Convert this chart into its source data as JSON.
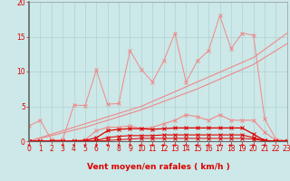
{
  "bg_color": "#cce8e8",
  "grid_color": "#aacccc",
  "line_color_light": "#f08888",
  "line_color_dark": "#dd0000",
  "xlabel": "Vent moyen/en rafales ( km/h )",
  "ylim": [
    0,
    20
  ],
  "xlim": [
    0,
    23
  ],
  "yticks": [
    0,
    5,
    10,
    15,
    20
  ],
  "xticks": [
    0,
    1,
    2,
    3,
    4,
    5,
    6,
    7,
    8,
    9,
    10,
    11,
    12,
    13,
    14,
    15,
    16,
    17,
    18,
    19,
    20,
    21,
    22,
    23
  ],
  "series_spiky": [
    [
      0,
      2.2
    ],
    [
      1,
      3.0
    ],
    [
      2,
      0.2
    ],
    [
      3,
      0.2
    ],
    [
      4,
      5.2
    ],
    [
      5,
      5.1
    ],
    [
      6,
      10.2
    ],
    [
      7,
      5.3
    ],
    [
      8,
      5.4
    ],
    [
      9,
      13.0
    ],
    [
      10,
      10.3
    ],
    [
      11,
      8.5
    ],
    [
      12,
      11.5
    ],
    [
      13,
      15.5
    ],
    [
      14,
      8.5
    ],
    [
      15,
      11.5
    ],
    [
      16,
      13.0
    ],
    [
      17,
      18.0
    ],
    [
      18,
      13.3
    ],
    [
      19,
      15.5
    ],
    [
      20,
      15.2
    ],
    [
      21,
      3.2
    ],
    [
      22,
      0.3
    ],
    [
      23,
      0.1
    ]
  ],
  "series_trend1": [
    [
      0,
      0.0
    ],
    [
      5,
      2.5
    ],
    [
      10,
      5.0
    ],
    [
      15,
      8.5
    ],
    [
      20,
      12.0
    ],
    [
      23,
      15.5
    ]
  ],
  "series_trend2": [
    [
      0,
      0.0
    ],
    [
      5,
      2.0
    ],
    [
      10,
      4.5
    ],
    [
      15,
      7.5
    ],
    [
      20,
      11.0
    ],
    [
      23,
      14.0
    ]
  ],
  "series_mid": [
    [
      0,
      0.0
    ],
    [
      1,
      0.0
    ],
    [
      2,
      0.0
    ],
    [
      3,
      0.0
    ],
    [
      4,
      0.1
    ],
    [
      5,
      0.2
    ],
    [
      6,
      1.5
    ],
    [
      7,
      2.0
    ],
    [
      8,
      2.0
    ],
    [
      9,
      2.2
    ],
    [
      10,
      1.8
    ],
    [
      11,
      2.0
    ],
    [
      12,
      2.5
    ],
    [
      13,
      3.0
    ],
    [
      14,
      3.8
    ],
    [
      15,
      3.5
    ],
    [
      16,
      3.0
    ],
    [
      17,
      3.8
    ],
    [
      18,
      3.0
    ],
    [
      19,
      3.0
    ],
    [
      20,
      3.0
    ],
    [
      21,
      1.3
    ],
    [
      22,
      0.1
    ],
    [
      23,
      0.0
    ]
  ],
  "series_dark1": [
    [
      0,
      0.0
    ],
    [
      1,
      0.0
    ],
    [
      2,
      0.0
    ],
    [
      3,
      0.0
    ],
    [
      4,
      0.0
    ],
    [
      5,
      0.1
    ],
    [
      6,
      0.5
    ],
    [
      7,
      1.5
    ],
    [
      8,
      1.7
    ],
    [
      9,
      1.8
    ],
    [
      10,
      1.8
    ],
    [
      11,
      1.7
    ],
    [
      12,
      1.8
    ],
    [
      13,
      1.9
    ],
    [
      14,
      1.9
    ],
    [
      15,
      1.9
    ],
    [
      16,
      1.9
    ],
    [
      17,
      1.9
    ],
    [
      18,
      1.9
    ],
    [
      19,
      1.9
    ],
    [
      20,
      1.0
    ],
    [
      21,
      0.1
    ],
    [
      22,
      0.0
    ],
    [
      23,
      0.0
    ]
  ],
  "series_dark2": [
    [
      0,
      0.0
    ],
    [
      1,
      0.0
    ],
    [
      2,
      0.0
    ],
    [
      3,
      0.0
    ],
    [
      4,
      0.0
    ],
    [
      5,
      0.0
    ],
    [
      6,
      0.1
    ],
    [
      7,
      0.5
    ],
    [
      8,
      0.7
    ],
    [
      9,
      0.8
    ],
    [
      10,
      0.8
    ],
    [
      11,
      0.8
    ],
    [
      12,
      0.9
    ],
    [
      13,
      0.9
    ],
    [
      14,
      0.9
    ],
    [
      15,
      0.9
    ],
    [
      16,
      0.9
    ],
    [
      17,
      0.9
    ],
    [
      18,
      0.9
    ],
    [
      19,
      0.9
    ],
    [
      20,
      0.5
    ],
    [
      21,
      0.1
    ],
    [
      22,
      0.0
    ],
    [
      23,
      0.0
    ]
  ],
  "series_dark3": [
    [
      0,
      0.0
    ],
    [
      1,
      0.0
    ],
    [
      2,
      0.0
    ],
    [
      3,
      0.0
    ],
    [
      4,
      0.0
    ],
    [
      5,
      0.0
    ],
    [
      6,
      0.0
    ],
    [
      7,
      0.1
    ],
    [
      8,
      0.2
    ],
    [
      9,
      0.3
    ],
    [
      10,
      0.4
    ],
    [
      11,
      0.4
    ],
    [
      12,
      0.4
    ],
    [
      13,
      0.4
    ],
    [
      14,
      0.4
    ],
    [
      15,
      0.4
    ],
    [
      16,
      0.4
    ],
    [
      17,
      0.4
    ],
    [
      18,
      0.4
    ],
    [
      19,
      0.4
    ],
    [
      20,
      0.3
    ],
    [
      21,
      0.0
    ],
    [
      22,
      0.0
    ],
    [
      23,
      0.0
    ]
  ],
  "arrows_x": [
    0,
    3,
    4,
    5,
    6,
    7,
    8,
    9,
    10,
    11,
    12,
    13,
    14,
    15,
    16,
    17,
    18,
    19,
    20,
    21
  ],
  "tick_fontsize": 5.5,
  "xlabel_fontsize": 6.5
}
